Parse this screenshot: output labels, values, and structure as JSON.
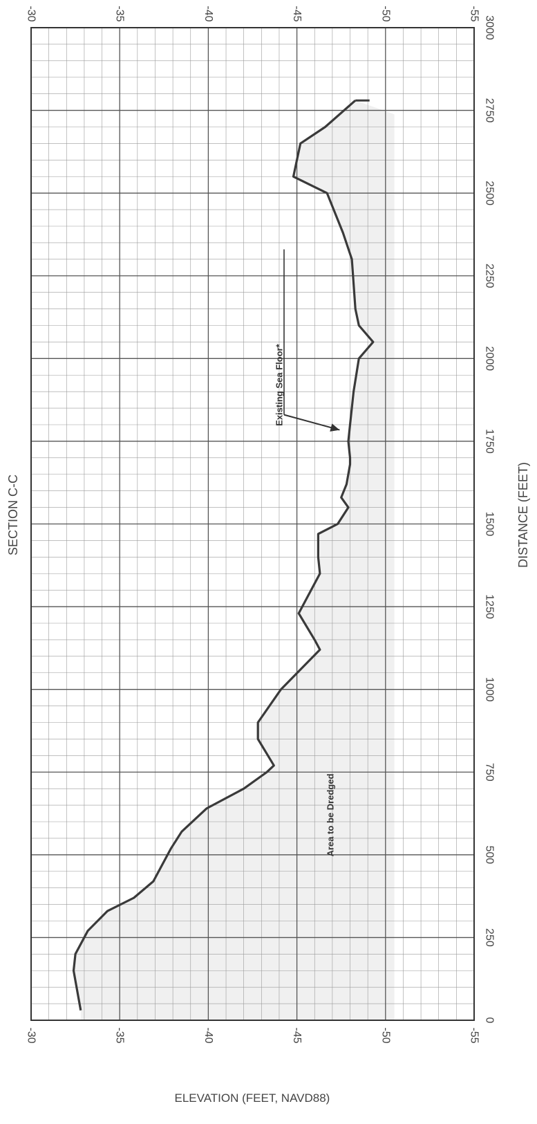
{
  "chart_data": {
    "type": "line",
    "title": "SECTION C-C",
    "xlabel": "DISTANCE (FEET)",
    "ylabel": "ELEVATION (FEET, NAVD88)",
    "xlim": [
      0,
      3000
    ],
    "ylim": [
      -55,
      -30
    ],
    "x_ticks": [
      "0",
      "250",
      "500",
      "750",
      "1000",
      "1250",
      "1500",
      "1750",
      "2000",
      "2250",
      "2500",
      "2750",
      "3000"
    ],
    "y_ticks": [
      "-30",
      "-35",
      "-40",
      "-45",
      "-50",
      "-55"
    ],
    "grid": true,
    "series": [
      {
        "x": [
          30,
          150,
          200,
          270,
          330,
          370,
          420,
          480,
          520,
          570,
          640,
          700,
          750,
          770,
          850,
          900,
          1000,
          1120,
          1150,
          1230,
          1320,
          1350,
          1400,
          1470,
          1500,
          1550,
          1580,
          1620,
          1680,
          1700,
          1750,
          1800,
          1900,
          2000,
          2050,
          2100,
          2150,
          2300,
          2380,
          2500,
          2550,
          2600,
          2650,
          2700,
          2780
        ],
        "y": [
          -32.8,
          -32.4,
          -32.5,
          -33.2,
          -34.3,
          -35.8,
          -36.9,
          -37.5,
          -37.9,
          -38.5,
          -39.9,
          -42.0,
          -43.3,
          -43.7,
          -42.8,
          -42.8,
          -44.1,
          -46.3,
          -46.0,
          -45.1,
          -46.0,
          -46.3,
          -46.2,
          -46.2,
          -47.3,
          -47.9,
          -47.5,
          -47.8,
          -48.0,
          -48.0,
          -47.9,
          -48.0,
          -48.2,
          -48.5,
          -49.3,
          -48.5,
          -48.3,
          -48.1,
          -47.6,
          -46.7,
          -44.8,
          -45.0,
          -45.2,
          -46.6,
          -48.3
        ]
      }
    ],
    "annotations": [
      {
        "text": "Existing Sea Floor*",
        "x": 1780,
        "y": -47.8
      },
      {
        "text": "Area to be Dredged",
        "x": 620,
        "y": -48.0
      }
    ],
    "colors": {
      "line": "#3a3a3a",
      "grid": "#555555",
      "shade": "#e4e4e4"
    }
  }
}
